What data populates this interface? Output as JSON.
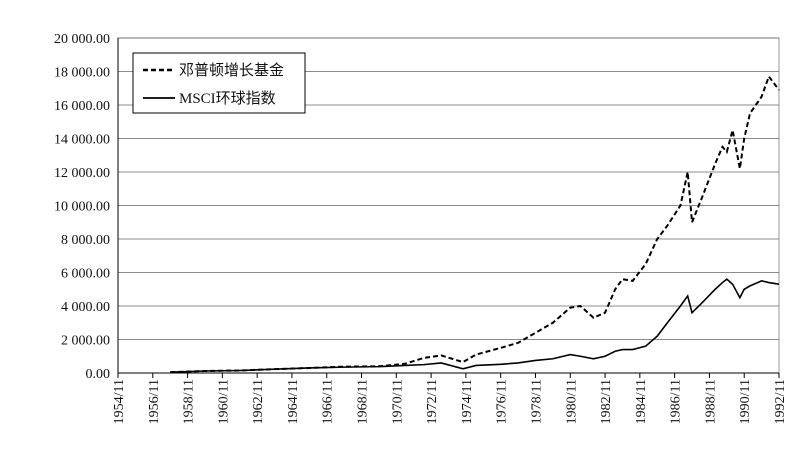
{
  "chart_data": {
    "type": "line",
    "x": [
      "1957/11",
      "1959/11",
      "1961/11",
      "1963/11",
      "1965/11",
      "1967/11",
      "1969/11",
      "1971/05",
      "1972/06",
      "1973/06",
      "1974/09",
      "1975/06",
      "1976/11",
      "1977/11",
      "1978/11",
      "1979/11",
      "1980/11",
      "1981/06",
      "1982/03",
      "1982/11",
      "1983/06",
      "1983/11",
      "1984/06",
      "1985/03",
      "1985/11",
      "1986/06",
      "1987/03",
      "1987/08",
      "1987/11",
      "1988/06",
      "1989/03",
      "1989/08",
      "1989/11",
      "1990/03",
      "1990/08",
      "1990/11",
      "1991/03",
      "1991/11",
      "1992/04",
      "1992/11"
    ],
    "series": [
      {
        "name": "邓普顿增长基金",
        "color": "#000000",
        "dash": true,
        "values": [
          50,
          120,
          150,
          230,
          300,
          380,
          400,
          550,
          900,
          1050,
          650,
          1100,
          1500,
          1800,
          2400,
          3000,
          3900,
          4000,
          3300,
          3600,
          5000,
          5600,
          5500,
          6500,
          8000,
          8800,
          10000,
          12000,
          9000,
          10500,
          12500,
          13500,
          13200,
          14500,
          12200,
          14000,
          15500,
          16500,
          17700,
          16900
        ]
      },
      {
        "name": "MSCI环球指数",
        "color": "#000000",
        "dash": false,
        "values": [
          50,
          120,
          150,
          230,
          300,
          350,
          380,
          450,
          500,
          600,
          250,
          450,
          520,
          600,
          750,
          850,
          1100,
          1000,
          850,
          1000,
          1300,
          1400,
          1400,
          1600,
          2200,
          3000,
          4000,
          4600,
          3600,
          4200,
          5000,
          5400,
          5600,
          5300,
          4500,
          5000,
          5200,
          5500,
          5400,
          5300
        ]
      }
    ],
    "xlim": [
      "1954/11",
      "1992/11"
    ],
    "xticks": [
      "1954/11",
      "1956/11",
      "1958/11",
      "1960/11",
      "1962/11",
      "1964/11",
      "1966/11",
      "1968/11",
      "1970/11",
      "1972/11",
      "1974/11",
      "1976/11",
      "1978/11",
      "1980/11",
      "1982/11",
      "1984/11",
      "1986/11",
      "1988/11",
      "1990/11",
      "1992/11"
    ],
    "ylim": [
      0,
      20000
    ],
    "yticks": [
      {
        "value": 0,
        "label": "0.00"
      },
      {
        "value": 2000,
        "label": "2 000.00"
      },
      {
        "value": 4000,
        "label": "4 000.00"
      },
      {
        "value": 6000,
        "label": "6 000.00"
      },
      {
        "value": 8000,
        "label": "8 000.00"
      },
      {
        "value": 10000,
        "label": "10 000.00"
      },
      {
        "value": 12000,
        "label": "12 000.00"
      },
      {
        "value": 14000,
        "label": "14 000.00"
      },
      {
        "value": 16000,
        "label": "16 000.00"
      },
      {
        "value": 18000,
        "label": "18 000.00"
      },
      {
        "value": 20000,
        "label": "20 000.00"
      }
    ],
    "grid": true,
    "legend": "top-left"
  }
}
